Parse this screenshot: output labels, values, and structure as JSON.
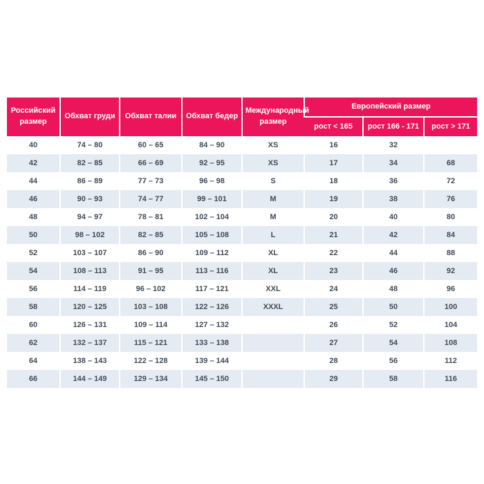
{
  "chart_data": {
    "type": "table",
    "title": "",
    "headers": {
      "russian_size": "Российский размер",
      "chest": "Обхват груди",
      "waist": "Обхват талии",
      "hips": "Обхват бедер",
      "international_size": "Международный размер",
      "european_size": "Европейский размер",
      "height_under_165": "рост < 165",
      "height_166_171": "рост 166 - 171",
      "height_over_171": "рост > 171"
    },
    "rows": [
      [
        "40",
        "74 – 80",
        "60 – 65",
        "84 – 90",
        "XS",
        "16",
        "32",
        ""
      ],
      [
        "42",
        "82 – 85",
        "66 – 69",
        "92 – 95",
        "XS",
        "17",
        "34",
        "68"
      ],
      [
        "44",
        "86 – 89",
        "77 – 73",
        "96 – 98",
        "S",
        "18",
        "36",
        "72"
      ],
      [
        "46",
        "90 – 93",
        "74 – 77",
        "99 – 101",
        "M",
        "19",
        "38",
        "76"
      ],
      [
        "48",
        "94 – 97",
        "78 – 81",
        "102 – 104",
        "M",
        "20",
        "40",
        "80"
      ],
      [
        "50",
        "98 – 102",
        "82 – 85",
        "105 – 108",
        "L",
        "21",
        "42",
        "84"
      ],
      [
        "52",
        "103 – 107",
        "86 – 90",
        "109 – 112",
        "XL",
        "22",
        "44",
        "88"
      ],
      [
        "54",
        "108 – 113",
        "91 – 95",
        "113 – 116",
        "XL",
        "23",
        "46",
        "92"
      ],
      [
        "56",
        "114 – 119",
        "96 – 102",
        "117 – 121",
        "XXL",
        "24",
        "48",
        "96"
      ],
      [
        "58",
        "120 – 125",
        "103 – 108",
        "122 – 126",
        "XXXL",
        "25",
        "50",
        "100"
      ],
      [
        "60",
        "126 – 131",
        "109 – 114",
        "127 – 132",
        "",
        "26",
        "52",
        "104"
      ],
      [
        "62",
        "132 – 137",
        "115 – 121",
        "133 – 138",
        "",
        "27",
        "54",
        "108"
      ],
      [
        "64",
        "138 – 143",
        "122 – 128",
        "139 – 144",
        "",
        "28",
        "56",
        "112"
      ],
      [
        "66",
        "144 – 149",
        "129 – 134",
        "145 – 150",
        "",
        "29",
        "58",
        "116"
      ]
    ]
  },
  "colors": {
    "header_bg": "#EC155B",
    "header_text": "#FFFFFF",
    "row_alt_bg": "#E5EBF3",
    "body_text": "#3F4A58"
  }
}
